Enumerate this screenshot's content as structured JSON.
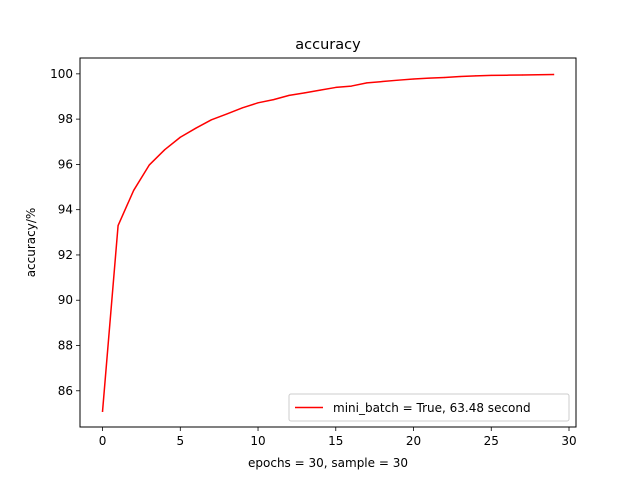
{
  "chart_data": {
    "type": "line",
    "title": "accuracy",
    "xlabel": "epochs = 30, sample = 30",
    "ylabel": "accuracy/%",
    "xlim": [
      -1.45,
      30.45
    ],
    "ylim": [
      84.4,
      100.7
    ],
    "xticks": [
      0,
      5,
      10,
      15,
      20,
      25,
      30
    ],
    "yticks": [
      86,
      88,
      90,
      92,
      94,
      96,
      98,
      100
    ],
    "grid": false,
    "legend_position": "lower-right",
    "series": [
      {
        "name": "mini_batch = True, 63.48 second",
        "color": "#ff0000",
        "x": [
          0,
          1,
          2,
          3,
          4,
          5,
          6,
          7,
          8,
          9,
          10,
          11,
          12,
          13,
          14,
          15,
          16,
          17,
          18,
          19,
          20,
          21,
          22,
          23,
          24,
          25,
          26,
          27,
          28,
          29
        ],
        "y": [
          85.1,
          93.3,
          94.85,
          95.97,
          96.65,
          97.2,
          97.6,
          97.97,
          98.23,
          98.5,
          98.72,
          98.86,
          99.05,
          99.16,
          99.28,
          99.4,
          99.46,
          99.6,
          99.66,
          99.72,
          99.77,
          99.81,
          99.84,
          99.88,
          99.91,
          99.93,
          99.94,
          99.95,
          99.96,
          99.97
        ]
      }
    ]
  }
}
